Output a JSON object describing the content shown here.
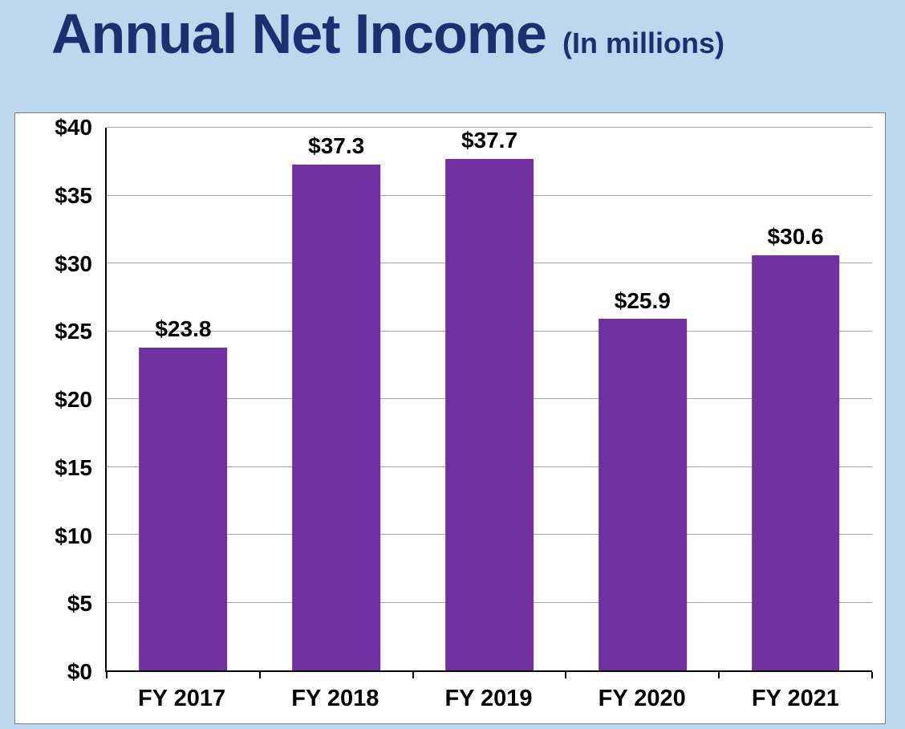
{
  "title": "Annual Net Income",
  "subtitle": "(In millions)",
  "chart_data": {
    "type": "bar",
    "title": "Annual Net Income",
    "subtitle": "(In millions)",
    "categories": [
      "FY 2017",
      "FY 2018",
      "FY 2019",
      "FY 2020",
      "FY 2021"
    ],
    "values": [
      23.8,
      37.3,
      37.7,
      25.9,
      30.6
    ],
    "value_labels": [
      "$23.8",
      "$37.3",
      "$37.7",
      "$25.9",
      "$30.6"
    ],
    "ylim": [
      0,
      40
    ],
    "ytick_step": 5,
    "ytick_labels": [
      "$0",
      "$5",
      "$10",
      "$15",
      "$20",
      "$25",
      "$30",
      "$35",
      "$40"
    ],
    "xlabel": "",
    "ylabel": "",
    "grid": true,
    "legend": "none",
    "bar_color": "#7030a0",
    "colors": {
      "page_background": "#bdd7ee",
      "panel_background": "#ffffff",
      "panel_border": "#808080",
      "title_text": "#1c2f6e",
      "gridline": "#a6a6a6",
      "axis_line": "#000000",
      "label_text": "#000000"
    }
  }
}
